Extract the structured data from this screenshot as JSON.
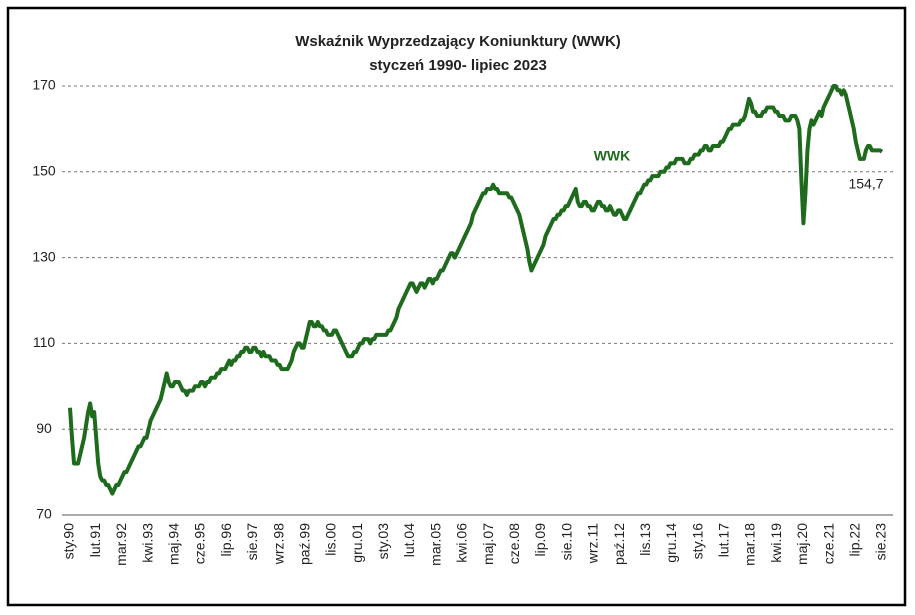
{
  "chart_data": {
    "type": "line",
    "title": "Wskaźnik Wyprzedzający Koniunktury (WWK)",
    "subtitle": "styczeń 1990- lipiec 2023",
    "categories": [
      "sty.90",
      null,
      null,
      null,
      null,
      null,
      null,
      null,
      null,
      null,
      null,
      null,
      null,
      "lut.91",
      null,
      null,
      null,
      null,
      null,
      null,
      null,
      null,
      null,
      null,
      null,
      null,
      "mar.92",
      null,
      null,
      null,
      null,
      null,
      null,
      null,
      null,
      null,
      null,
      null,
      null,
      "kwi.93",
      null,
      null,
      null,
      null,
      null,
      null,
      null,
      null,
      null,
      null,
      null,
      null,
      "maj.94",
      null,
      null,
      null,
      null,
      null,
      null,
      null,
      null,
      null,
      null,
      null,
      null,
      "cze.95",
      null,
      null,
      null,
      null,
      null,
      null,
      null,
      null,
      null,
      null,
      null,
      null,
      "lip.96",
      null,
      null,
      null,
      null,
      null,
      null,
      null,
      null,
      null,
      null,
      null,
      null,
      "sie.97",
      null,
      null,
      null,
      null,
      null,
      null,
      null,
      null,
      null,
      null,
      null,
      null,
      "wrz.98",
      null,
      null,
      null,
      null,
      null,
      null,
      null,
      null,
      null,
      null,
      null,
      null,
      "paź.99",
      null,
      null,
      null,
      null,
      null,
      null,
      null,
      null,
      null,
      null,
      null,
      null,
      "lis.00",
      null,
      null,
      null,
      null,
      null,
      null,
      null,
      null,
      null,
      null,
      null,
      null,
      "gru.01",
      null,
      null,
      null,
      null,
      null,
      null,
      null,
      null,
      null,
      null,
      null,
      null,
      "sty.03",
      null,
      null,
      null,
      null,
      null,
      null,
      null,
      null,
      null,
      null,
      null,
      null,
      "lut.04",
      null,
      null,
      null,
      null,
      null,
      null,
      null,
      null,
      null,
      null,
      null,
      null,
      "mar.05",
      null,
      null,
      null,
      null,
      null,
      null,
      null,
      null,
      null,
      null,
      null,
      null,
      "kwi.06",
      null,
      null,
      null,
      null,
      null,
      null,
      null,
      null,
      null,
      null,
      null,
      null,
      "maj.07",
      null,
      null,
      null,
      null,
      null,
      null,
      null,
      null,
      null,
      null,
      null,
      null,
      "cze.08",
      null,
      null,
      null,
      null,
      null,
      null,
      null,
      null,
      null,
      null,
      null,
      null,
      "lip.09",
      null,
      null,
      null,
      null,
      null,
      null,
      null,
      null,
      null,
      null,
      null,
      null,
      "sie.10",
      null,
      null,
      null,
      null,
      null,
      null,
      null,
      null,
      null,
      null,
      null,
      null,
      "wrz.11",
      null,
      null,
      null,
      null,
      null,
      null,
      null,
      null,
      null,
      null,
      null,
      null,
      "paź.12",
      null,
      null,
      null,
      null,
      null,
      null,
      null,
      null,
      null,
      null,
      null,
      null,
      "lis.13",
      null,
      null,
      null,
      null,
      null,
      null,
      null,
      null,
      null,
      null,
      null,
      null,
      "gru.14",
      null,
      null,
      null,
      null,
      null,
      null,
      null,
      null,
      null,
      null,
      null,
      null,
      "sty.16",
      null,
      null,
      null,
      null,
      null,
      null,
      null,
      null,
      null,
      null,
      null,
      null,
      "lut.17",
      null,
      null,
      null,
      null,
      null,
      null,
      null,
      null,
      null,
      null,
      null,
      null,
      "mar.18",
      null,
      null,
      null,
      null,
      null,
      null,
      null,
      null,
      null,
      null,
      null,
      null,
      "kwi.19",
      null,
      null,
      null,
      null,
      null,
      null,
      null,
      null,
      null,
      null,
      null,
      null,
      "maj.20",
      null,
      null,
      null,
      null,
      null,
      null,
      null,
      null,
      null,
      null,
      null,
      null,
      "cze.21",
      null,
      null,
      null,
      null,
      null,
      null,
      null,
      null,
      null,
      null,
      null,
      null,
      "lip.22",
      null,
      null,
      null,
      null,
      null,
      null,
      null,
      null,
      null,
      null,
      null,
      null,
      "sie.23"
    ],
    "series": [
      {
        "name": "WWK",
        "color": "#1e6b1e",
        "values": [
          95,
          88,
          82,
          82,
          82,
          84,
          86,
          88,
          91,
          94,
          96,
          93,
          94,
          88,
          82,
          79,
          78,
          78,
          77,
          77,
          76,
          75,
          76,
          77,
          77,
          78,
          79,
          80,
          80,
          81,
          82,
          83,
          84,
          85,
          86,
          86,
          87,
          88,
          88,
          90,
          92,
          93,
          94,
          95,
          96,
          97,
          99,
          101,
          103,
          101,
          100,
          100,
          101,
          101,
          101,
          100,
          99,
          99,
          98,
          99,
          99,
          99,
          100,
          100,
          100,
          101,
          101,
          100,
          101,
          101,
          102,
          102,
          102,
          103,
          103,
          104,
          104,
          104,
          105,
          106,
          105,
          106,
          106,
          107,
          107,
          108,
          108,
          109,
          109,
          108,
          108,
          109,
          109,
          108,
          108,
          107,
          108,
          107,
          107,
          107,
          106,
          106,
          106,
          105,
          105,
          104,
          104,
          104,
          104,
          105,
          106,
          108,
          109,
          110,
          110,
          109,
          109,
          111,
          113,
          115,
          115,
          114,
          114,
          115,
          114,
          114,
          113,
          113,
          112,
          112,
          112,
          113,
          113,
          112,
          111,
          110,
          109,
          108,
          107,
          107,
          107,
          108,
          108,
          109,
          110,
          110,
          111,
          111,
          111,
          110,
          111,
          111,
          112,
          112,
          112,
          112,
          112,
          112,
          113,
          113,
          114,
          115,
          116,
          118,
          119,
          120,
          121,
          122,
          123,
          124,
          124,
          123,
          122,
          123,
          124,
          124,
          123,
          124,
          125,
          125,
          124,
          125,
          125,
          126,
          127,
          127,
          128,
          129,
          130,
          131,
          131,
          130,
          131,
          132,
          133,
          134,
          135,
          136,
          137,
          138,
          140,
          141,
          142,
          143,
          144,
          145,
          145,
          146,
          146,
          146,
          147,
          146,
          146,
          145,
          145,
          145,
          145,
          145,
          144,
          144,
          143,
          142,
          141,
          140,
          138,
          136,
          134,
          132,
          129,
          127,
          128,
          129,
          130,
          131,
          132,
          133,
          135,
          136,
          137,
          138,
          139,
          139,
          140,
          140,
          141,
          141,
          142,
          142,
          143,
          144,
          145,
          146,
          143,
          142,
          142,
          143,
          143,
          142,
          142,
          141,
          141,
          142,
          143,
          143,
          142,
          142,
          141,
          141,
          142,
          141,
          140,
          140,
          141,
          141,
          140,
          139,
          139,
          140,
          141,
          142,
          143,
          144,
          145,
          145,
          146,
          147,
          147,
          148,
          148,
          149,
          149,
          149,
          149,
          150,
          150,
          150,
          151,
          151,
          152,
          152,
          152,
          153,
          153,
          153,
          153,
          152,
          152,
          152,
          153,
          153,
          154,
          154,
          154,
          155,
          155,
          156,
          156,
          155,
          155,
          156,
          156,
          156,
          156,
          157,
          157,
          158,
          159,
          160,
          160,
          161,
          161,
          161,
          161,
          162,
          162,
          163,
          165,
          167,
          166,
          164,
          164,
          163,
          163,
          163,
          164,
          164,
          165,
          165,
          165,
          165,
          164,
          164,
          163,
          163,
          163,
          162,
          162,
          162,
          163,
          163,
          163,
          162,
          160,
          148,
          138,
          145,
          155,
          160,
          162,
          161,
          162,
          163,
          164,
          163,
          165,
          166,
          167,
          168,
          169,
          170,
          170,
          169,
          169,
          168,
          169,
          168,
          166,
          164,
          162,
          160,
          157,
          155,
          153,
          153,
          153,
          155,
          156,
          156,
          155,
          155,
          155,
          155,
          155,
          154.7
        ]
      }
    ],
    "value_labels": {
      "403": "154,7"
    },
    "ylim": [
      70,
      170
    ],
    "yticks": [
      70,
      90,
      110,
      130,
      150,
      170
    ],
    "grid": true
  }
}
